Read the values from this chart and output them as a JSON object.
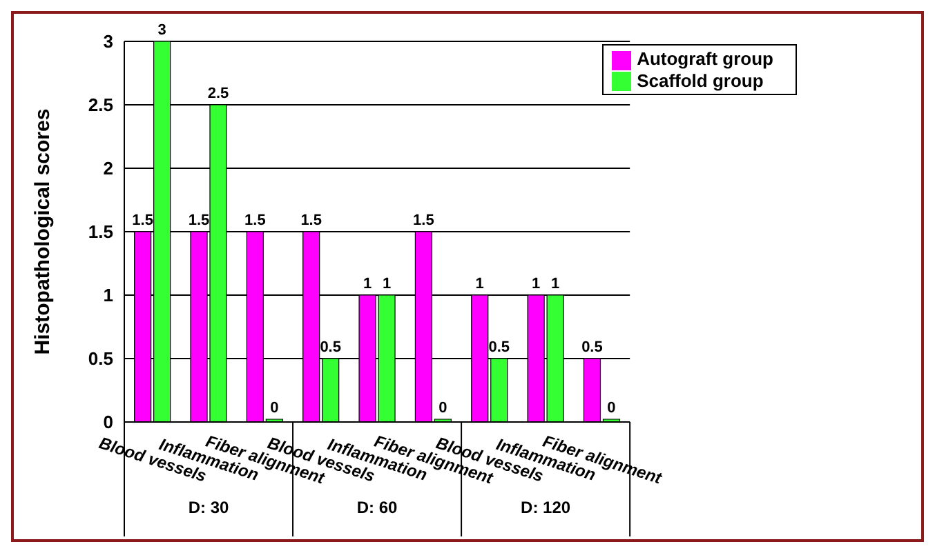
{
  "chart_data": {
    "type": "bar",
    "ylabel": "Histopathological scores",
    "categories": [
      "Blood vessels",
      "Inflammation",
      "Fiber alignment",
      "Blood vessels",
      "Inflammation",
      "Fiber alignment",
      "Blood vessels",
      "Inflammation",
      "Fiber alignment"
    ],
    "series": [
      {
        "name": "Autograft group",
        "color": "#ff00ff",
        "values": [
          1.5,
          1.5,
          1.5,
          1.5,
          1,
          1.5,
          1,
          1,
          0.5
        ]
      },
      {
        "name": "Scaffold group",
        "color": "#33ff33",
        "values": [
          3,
          2.5,
          0,
          0.5,
          1,
          0,
          0.5,
          1,
          0
        ]
      }
    ],
    "annotations": [
      "D: 30",
      "D: 60",
      "D: 120"
    ],
    "ylim": [
      0,
      3
    ],
    "yticks": [
      0,
      0.5,
      1,
      1.5,
      2,
      2.5,
      3
    ],
    "grid": "y",
    "legend": "top right",
    "data_labels": true
  }
}
